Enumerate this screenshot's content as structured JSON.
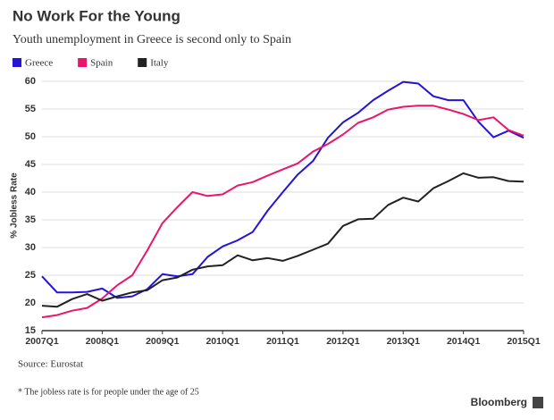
{
  "chart_data": {
    "type": "line",
    "title": "No Work For the Young",
    "subtitle": "Youth unemployment in Greece is second only to Spain",
    "y_label": "% Jobless Rate",
    "source": "Source: Eurostat",
    "footnote": "* The jobless rate is for people under the age of 25",
    "brand": "Bloomberg",
    "categories": [
      "2007Q1",
      null,
      null,
      null,
      "2008Q1",
      null,
      null,
      null,
      "2009Q1",
      null,
      null,
      null,
      "2010Q1",
      null,
      null,
      null,
      "2011Q1",
      null,
      null,
      null,
      "2012Q1",
      null,
      null,
      null,
      "2013Q1",
      null,
      null,
      null,
      "2014Q1",
      null,
      null,
      null,
      "2015Q1"
    ],
    "series": [
      {
        "name": "Greece",
        "color": "#2414d4",
        "values": [
          24.8,
          21.9,
          21.9,
          22.0,
          22.6,
          20.9,
          21.2,
          22.5,
          25.2,
          24.8,
          25.2,
          28.3,
          30.2,
          31.3,
          32.8,
          36.7,
          40.0,
          43.2,
          45.6,
          49.8,
          52.6,
          54.3,
          56.6,
          58.3,
          59.9,
          59.6,
          57.3,
          56.6,
          56.6,
          52.7,
          49.9,
          51.1,
          49.8
        ]
      },
      {
        "name": "Spain",
        "color": "#e8176b",
        "values": [
          17.4,
          17.8,
          18.6,
          19.1,
          20.8,
          23.2,
          25.0,
          29.5,
          34.4,
          37.3,
          40.0,
          39.3,
          39.6,
          41.2,
          41.8,
          43.0,
          44.1,
          45.2,
          47.3,
          48.7,
          50.4,
          52.5,
          53.5,
          54.9,
          55.4,
          55.6,
          55.6,
          54.9,
          54.1,
          53.0,
          53.5,
          51.2,
          50.2
        ]
      },
      {
        "name": "Italy",
        "color": "#222222",
        "values": [
          19.5,
          19.3,
          20.7,
          21.6,
          20.4,
          21.2,
          21.9,
          22.3,
          24.1,
          24.6,
          26.0,
          26.6,
          26.8,
          28.6,
          27.7,
          28.1,
          27.6,
          28.5,
          29.6,
          30.7,
          33.9,
          35.1,
          35.2,
          37.7,
          39.0,
          38.3,
          40.7,
          42.0,
          43.4,
          42.6,
          42.7,
          42.0,
          41.9
        ]
      }
    ],
    "ylim": [
      15,
      60
    ],
    "yticks": [
      15,
      20,
      25,
      30,
      35,
      40,
      45,
      50,
      55,
      60
    ],
    "grid": true
  }
}
